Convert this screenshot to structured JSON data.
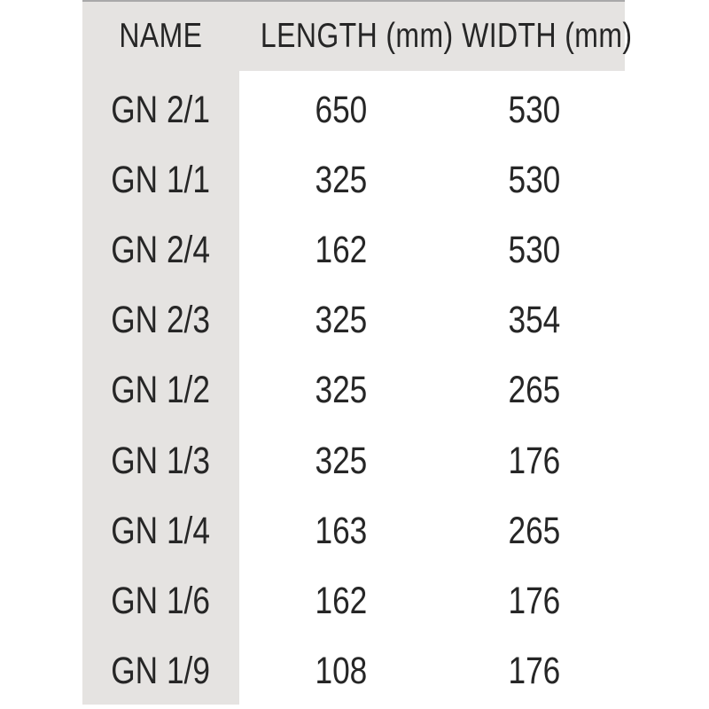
{
  "table": {
    "header": {
      "name": "NAME",
      "length": "LENGTH (mm)",
      "width": "WIDTH (mm)"
    },
    "rows": [
      {
        "name": "GN 2/1",
        "length": "650",
        "width": "530"
      },
      {
        "name": "GN 1/1",
        "length": "325",
        "width": "530"
      },
      {
        "name": "GN 2/4",
        "length": "162",
        "width": "530"
      },
      {
        "name": "GN 2/3",
        "length": "325",
        "width": "354"
      },
      {
        "name": "GN 1/2",
        "length": "325",
        "width": "265"
      },
      {
        "name": "GN 1/3",
        "length": "325",
        "width": "176"
      },
      {
        "name": "GN 1/4",
        "length": "163",
        "width": "265"
      },
      {
        "name": "GN 1/6",
        "length": "162",
        "width": "176"
      },
      {
        "name": "GN 1/9",
        "length": "108",
        "width": "176"
      }
    ],
    "colors": {
      "stripe": "#e5e3e1",
      "text": "#262626",
      "top_edge": "#a9a9a9",
      "background": "#ffffff"
    }
  },
  "chart_data": {
    "type": "table",
    "title": "",
    "columns": [
      "NAME",
      "LENGTH (mm)",
      "WIDTH (mm)"
    ],
    "rows": [
      [
        "GN 2/1",
        650,
        530
      ],
      [
        "GN 1/1",
        325,
        530
      ],
      [
        "GN 2/4",
        162,
        530
      ],
      [
        "GN 2/3",
        325,
        354
      ],
      [
        "GN 1/2",
        325,
        265
      ],
      [
        "GN 1/3",
        325,
        176
      ],
      [
        "GN 1/4",
        163,
        265
      ],
      [
        "GN 1/6",
        162,
        176
      ],
      [
        "GN 1/9",
        108,
        176
      ]
    ]
  }
}
